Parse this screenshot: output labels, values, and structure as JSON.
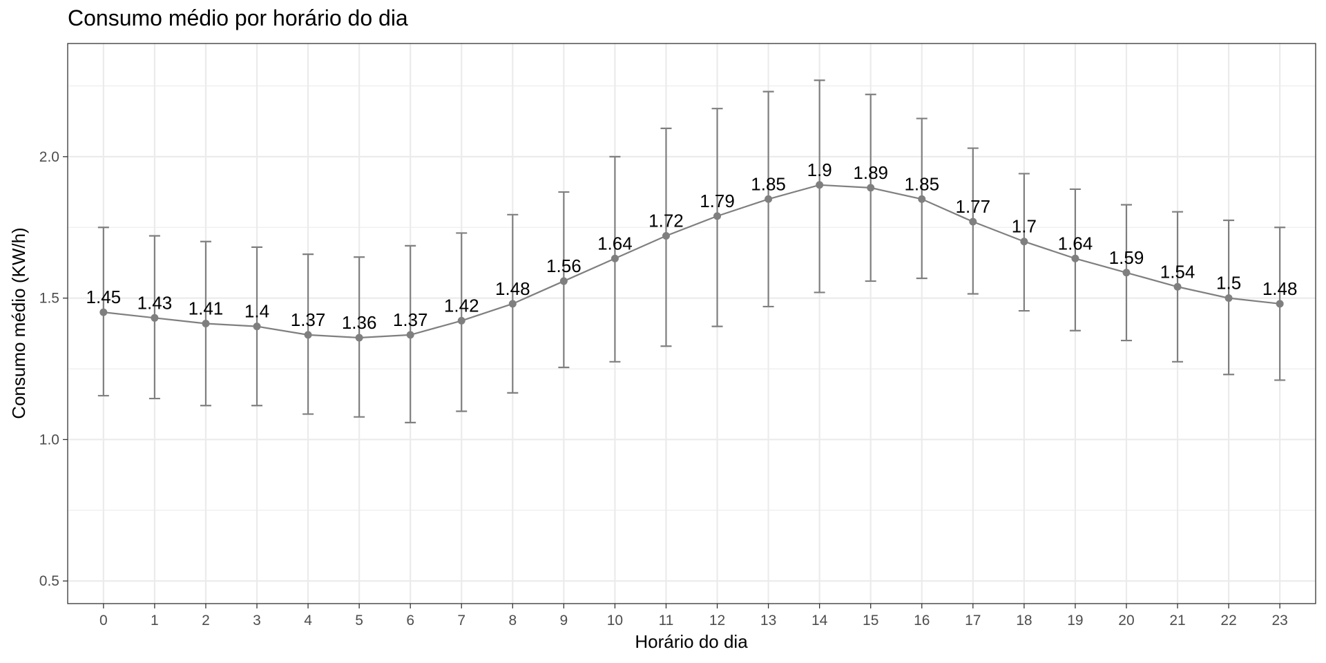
{
  "chart_data": {
    "type": "line",
    "title": "Consumo médio por horário do dia",
    "xlabel": "Horário do dia",
    "ylabel": "Consumo médio (KW/h)",
    "x": [
      0,
      1,
      2,
      3,
      4,
      5,
      6,
      7,
      8,
      9,
      10,
      11,
      12,
      13,
      14,
      15,
      16,
      17,
      18,
      19,
      20,
      21,
      22,
      23
    ],
    "values": [
      1.45,
      1.43,
      1.41,
      1.4,
      1.37,
      1.36,
      1.37,
      1.42,
      1.48,
      1.56,
      1.64,
      1.72,
      1.79,
      1.85,
      1.9,
      1.89,
      1.85,
      1.77,
      1.7,
      1.64,
      1.59,
      1.54,
      1.5,
      1.48
    ],
    "labels": [
      "1.45",
      "1.43",
      "1.41",
      "1.4",
      "1.37",
      "1.36",
      "1.37",
      "1.42",
      "1.48",
      "1.56",
      "1.64",
      "1.72",
      "1.79",
      "1.85",
      "1.9",
      "1.89",
      "1.85",
      "1.77",
      "1.7",
      "1.64",
      "1.59",
      "1.54",
      "1.5",
      "1.48"
    ],
    "error_upper": [
      1.75,
      1.72,
      1.7,
      1.68,
      1.655,
      1.645,
      1.685,
      1.73,
      1.795,
      1.875,
      2.0,
      2.1,
      2.17,
      2.23,
      2.27,
      2.22,
      2.135,
      2.03,
      1.94,
      1.885,
      1.83,
      1.805,
      1.775,
      1.75
    ],
    "error_lower": [
      1.155,
      1.145,
      1.12,
      1.12,
      1.09,
      1.08,
      1.06,
      1.1,
      1.165,
      1.255,
      1.275,
      1.33,
      1.4,
      1.47,
      1.52,
      1.56,
      1.57,
      1.515,
      1.455,
      1.385,
      1.35,
      1.275,
      1.23,
      1.21
    ],
    "y_ticks": [
      0.5,
      1.0,
      1.5,
      2.0
    ],
    "y_tick_labels": [
      "0.5",
      "1.0",
      "1.5",
      "2.0"
    ],
    "ylim": [
      0.42,
      2.4
    ],
    "xlim": [
      -0.7,
      23.7
    ],
    "grid": true,
    "theme": "bw",
    "colors": {
      "series": "#7f7f7f",
      "grid": "#ebebeb",
      "border": "#333333"
    }
  }
}
